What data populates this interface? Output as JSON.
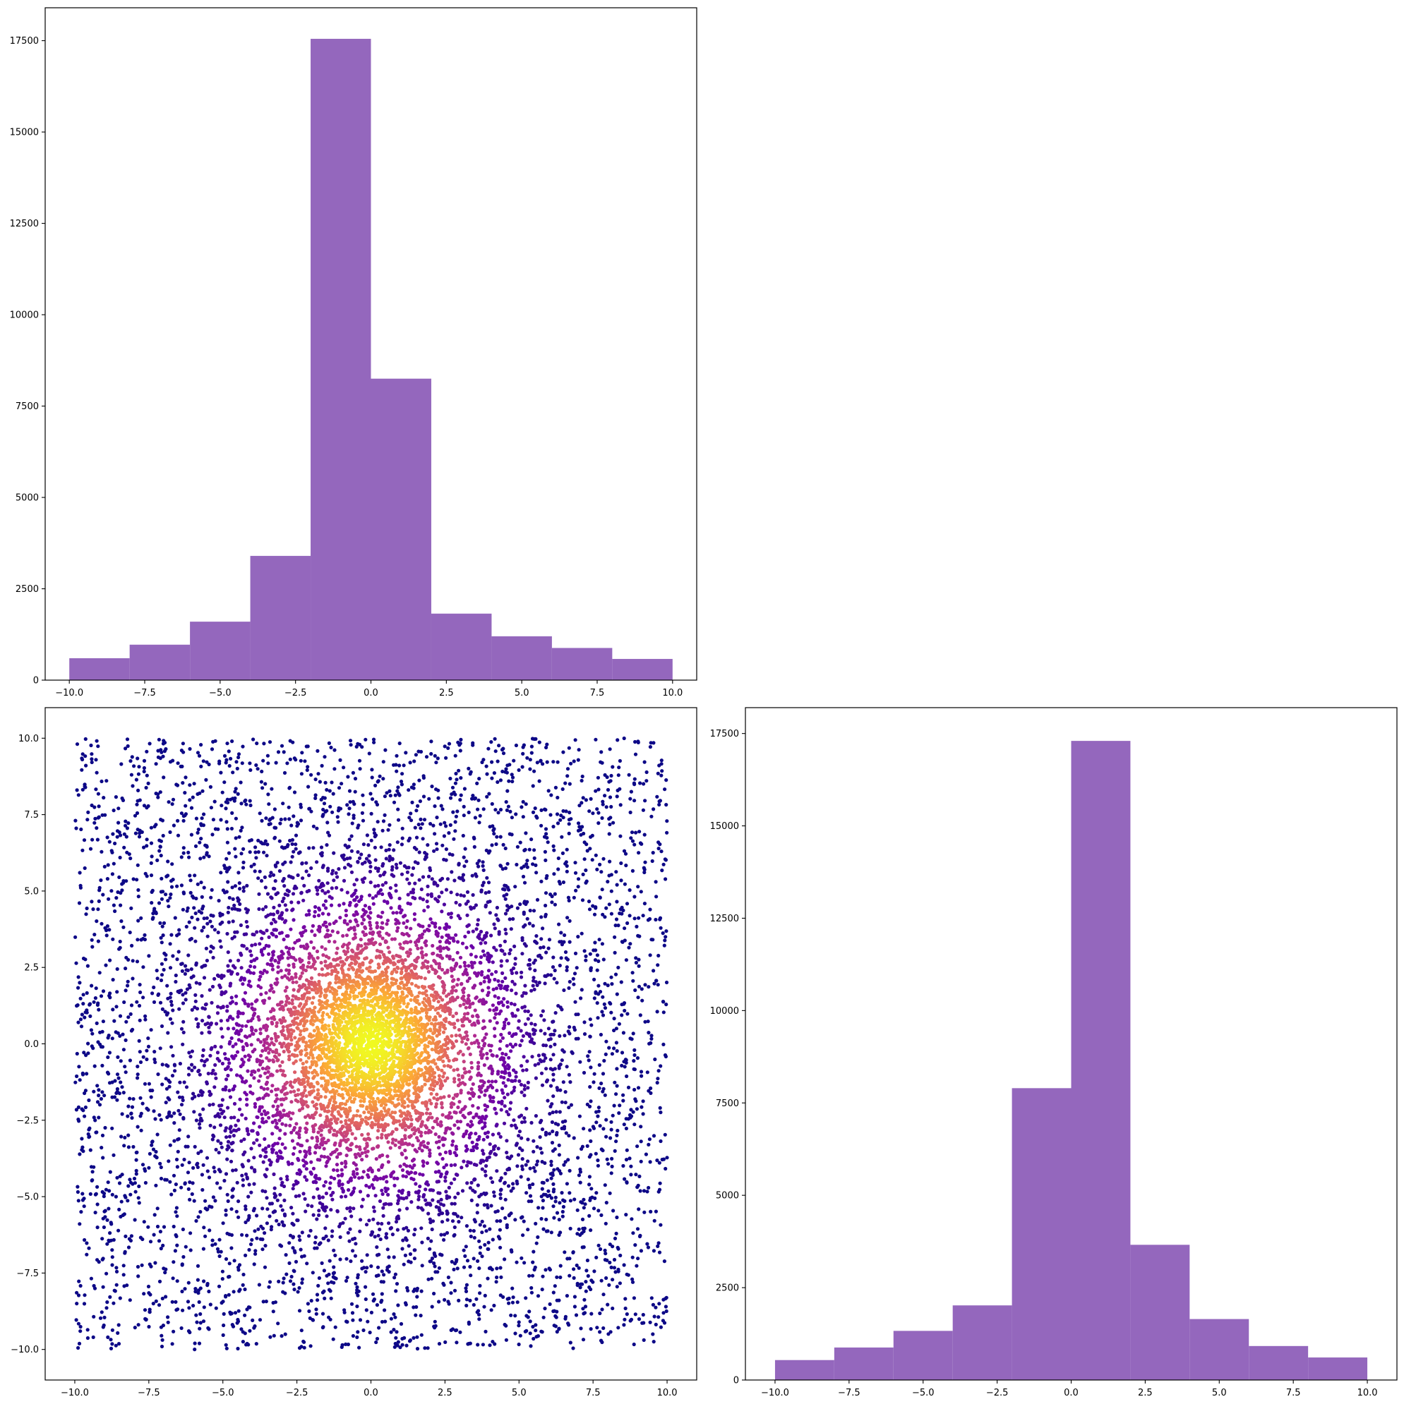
{
  "chart_data": [
    {
      "id": "hist-x",
      "type": "bar",
      "panel": "top-left",
      "title": "",
      "xlabel": "",
      "ylabel": "",
      "bin_edges": [
        -10,
        -8,
        -6,
        -4,
        -2,
        0,
        2,
        4,
        6,
        8,
        10
      ],
      "values": [
        600,
        970,
        1600,
        3400,
        17550,
        8250,
        1820,
        1200,
        880,
        580
      ],
      "xlim": [
        -10.8,
        10.8
      ],
      "ylim": [
        0,
        18400
      ],
      "xticks": [
        -10,
        -7.5,
        -5,
        -2.5,
        0,
        2.5,
        5,
        7.5,
        10
      ],
      "xtick_labels": [
        "−10.0",
        "−7.5",
        "−5.0",
        "−2.5",
        "0.0",
        "2.5",
        "5.0",
        "7.5",
        "10.0"
      ],
      "yticks": [
        0,
        2500,
        5000,
        7500,
        10000,
        12500,
        15000,
        17500
      ],
      "ytick_labels": [
        "0",
        "2500",
        "5000",
        "7500",
        "10000",
        "12500",
        "15000",
        "17500"
      ],
      "color": "#9467bd",
      "grid": false
    },
    {
      "id": "scatter-xy",
      "type": "scatter",
      "panel": "bottom-left",
      "title": "",
      "xlabel": "",
      "ylabel": "",
      "xlim": [
        -11,
        11
      ],
      "ylim": [
        -11,
        11
      ],
      "xticks": [
        -10,
        -7.5,
        -5,
        -2.5,
        0,
        2.5,
        5,
        7.5,
        10
      ],
      "xtick_labels": [
        "−10.0",
        "−7.5",
        "−5.0",
        "−2.5",
        "0.0",
        "2.5",
        "5.0",
        "7.5",
        "10.0"
      ],
      "yticks": [
        -10,
        -7.5,
        -5,
        -2.5,
        0,
        2.5,
        5,
        7.5,
        10
      ],
      "ytick_labels": [
        "−10.0",
        "−7.5",
        "−5.0",
        "−2.5",
        "0.0",
        "2.5",
        "5.0",
        "7.5",
        "10.0"
      ],
      "colormap": "plasma",
      "colormap_stops": [
        "#0d0887",
        "#6a00a8",
        "#b12a90",
        "#e16462",
        "#fca636",
        "#f0f921"
      ],
      "density_center": [
        0,
        0
      ],
      "point_count_shown": 9000,
      "grid": false
    },
    {
      "id": "hist-y",
      "type": "bar",
      "panel": "bottom-right",
      "title": "",
      "xlabel": "",
      "ylabel": "",
      "bin_edges": [
        -10,
        -8,
        -6,
        -4,
        -2,
        0,
        2,
        4,
        6,
        8,
        10
      ],
      "values": [
        540,
        880,
        1330,
        2020,
        7900,
        17300,
        3660,
        1650,
        920,
        610
      ],
      "xlim": [
        -11,
        11
      ],
      "ylim": [
        0,
        18200
      ],
      "xticks": [
        -10,
        -7.5,
        -5,
        -2.5,
        0,
        2.5,
        5,
        7.5,
        10
      ],
      "xtick_labels": [
        "−10.0",
        "−7.5",
        "−5.0",
        "−2.5",
        "0.0",
        "2.5",
        "5.0",
        "7.5",
        "10.0"
      ],
      "yticks": [
        0,
        2500,
        5000,
        7500,
        10000,
        12500,
        15000,
        17500
      ],
      "ytick_labels": [
        "0",
        "2500",
        "5000",
        "7500",
        "10000",
        "12500",
        "15000",
        "17500"
      ],
      "color": "#9467bd",
      "grid": false
    }
  ]
}
